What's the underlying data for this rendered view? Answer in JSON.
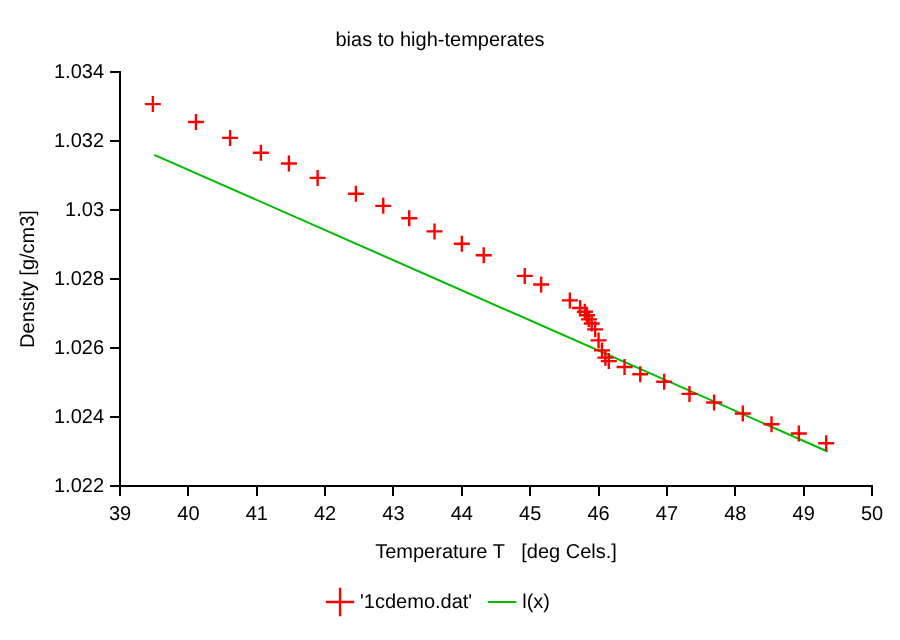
{
  "chart_data": {
    "type": "scatter",
    "title": "bias to high-temperates",
    "xlabel": "Temperature T   [deg Cels.]",
    "ylabel": "Density [g/cm3]",
    "xlim": [
      39,
      50
    ],
    "xticks": [
      39,
      40,
      41,
      42,
      43,
      44,
      45,
      46,
      47,
      48,
      49,
      50
    ],
    "ylim": [
      1.022,
      1.034
    ],
    "yticks": [
      1.022,
      1.024,
      1.026,
      1.028,
      1.03,
      1.032,
      1.034
    ],
    "grid": false,
    "legend": "bottom",
    "marker": "cross",
    "series": [
      {
        "name": "'1cdemo.dat'",
        "color": "#ff0000",
        "x": [
          39.48,
          40.11,
          40.61,
          41.06,
          41.47,
          41.89,
          42.45,
          42.85,
          43.23,
          43.6,
          44.0,
          44.32,
          44.92,
          45.16,
          45.58,
          45.73,
          45.8,
          45.83,
          45.86,
          45.9,
          45.95,
          46.0,
          46.05,
          46.1,
          46.15,
          46.38,
          46.61,
          46.96,
          47.33,
          47.69,
          48.11,
          48.53,
          48.93,
          49.33
        ],
        "values": [
          1.03307,
          1.03255,
          1.03209,
          1.03166,
          1.03135,
          1.03093,
          1.03047,
          1.03012,
          1.02976,
          1.02938,
          1.02902,
          1.02869,
          1.02809,
          1.02784,
          1.02738,
          1.02716,
          1.02705,
          1.02695,
          1.02683,
          1.02671,
          1.02654,
          1.02622,
          1.02593,
          1.02572,
          1.02562,
          1.02545,
          1.02524,
          1.02502,
          1.02467,
          1.02442,
          1.0241,
          1.02379,
          1.02352,
          1.02324
        ]
      },
      {
        "name": "l(x)",
        "type": "line",
        "color": "#00bb00",
        "marker": "none",
        "x": [
          39.5,
          49.35
        ],
        "values": [
          1.0316,
          1.023
        ]
      }
    ]
  }
}
